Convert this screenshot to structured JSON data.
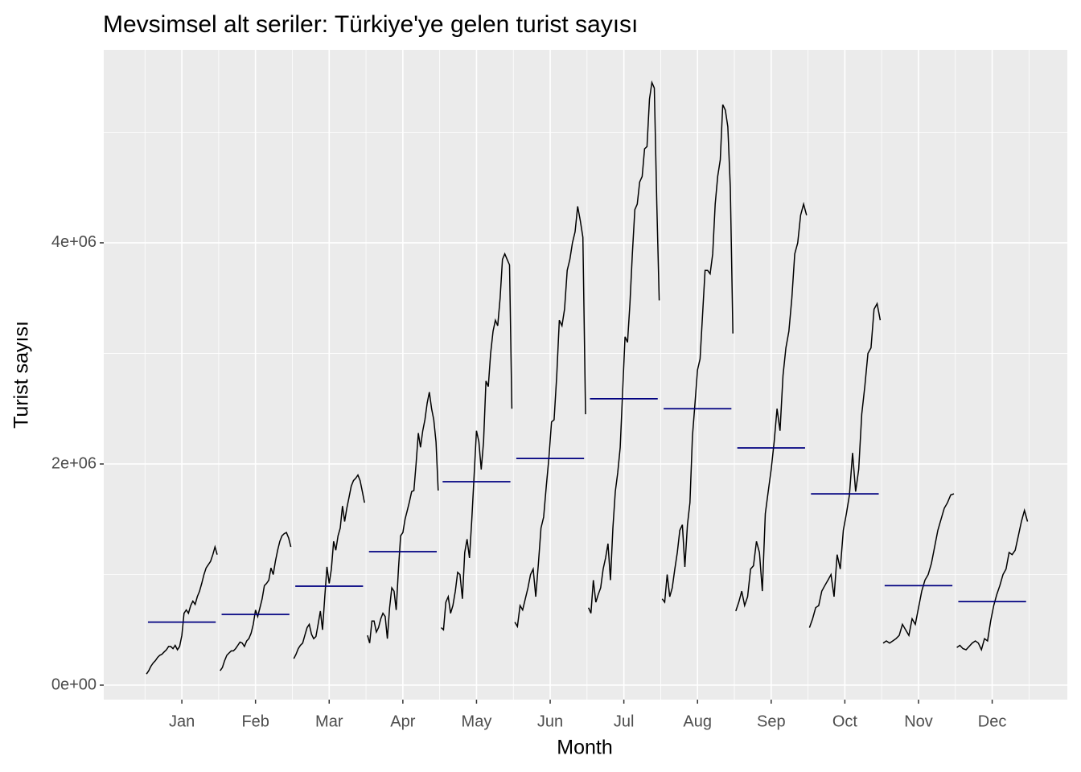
{
  "chart_data": {
    "type": "subseries",
    "title": "Mevsimsel alt seriler: Türkiye'ye gelen turist sayısı",
    "x_label": "Month",
    "y_label": "Turist sayısı",
    "line_color": "#000000",
    "mean_color": "#000080",
    "xlim": [
      -0.06,
      13.02
    ],
    "xticks": [
      {
        "value": 1,
        "label": "Jan"
      },
      {
        "value": 2,
        "label": "Feb"
      },
      {
        "value": 3,
        "label": "Mar"
      },
      {
        "value": 4,
        "label": "Apr"
      },
      {
        "value": 5,
        "label": "May"
      },
      {
        "value": 6,
        "label": "Jun"
      },
      {
        "value": 7,
        "label": "Jul"
      },
      {
        "value": 8,
        "label": "Aug"
      },
      {
        "value": 9,
        "label": "Sep"
      },
      {
        "value": 10,
        "label": "Oct"
      },
      {
        "value": 11,
        "label": "Nov"
      },
      {
        "value": 12,
        "label": "Dec"
      }
    ],
    "minor_xticks": [
      0.5,
      1.5,
      2.5,
      3.5,
      4.5,
      5.5,
      6.5,
      7.5,
      8.5,
      9.5,
      10.5,
      11.5,
      12.5
    ],
    "ylim": [
      -131000,
      5745000
    ],
    "yticks": [
      {
        "value": 0,
        "label": "0e+00"
      },
      {
        "value": 2000000,
        "label": "2e+06"
      },
      {
        "value": 4000000,
        "label": "4e+06"
      }
    ],
    "minor_yticks": [
      1000000,
      3000000,
      5000000
    ],
    "grid": true,
    "series": [
      {
        "name": "Jan",
        "mean": 570000,
        "values": [
          100000,
          130000,
          170000,
          200000,
          220000,
          250000,
          270000,
          280000,
          300000,
          320000,
          350000,
          350000,
          330000,
          360000,
          320000,
          350000,
          450000,
          650000,
          680000,
          650000,
          720000,
          760000,
          730000,
          800000,
          850000,
          920000,
          1000000,
          1060000,
          1090000,
          1120000,
          1180000,
          1250000,
          1180000
        ]
      },
      {
        "name": "Feb",
        "mean": 640000,
        "values": [
          130000,
          160000,
          220000,
          270000,
          290000,
          310000,
          310000,
          330000,
          360000,
          390000,
          380000,
          350000,
          400000,
          420000,
          470000,
          550000,
          680000,
          620000,
          700000,
          780000,
          900000,
          920000,
          950000,
          1060000,
          1000000,
          1120000,
          1220000,
          1300000,
          1350000,
          1370000,
          1380000,
          1330000,
          1250000
        ]
      },
      {
        "name": "Mar",
        "mean": 895000,
        "values": [
          240000,
          280000,
          330000,
          360000,
          380000,
          450000,
          520000,
          550000,
          460000,
          420000,
          440000,
          550000,
          670000,
          500000,
          800000,
          1070000,
          920000,
          1050000,
          1300000,
          1220000,
          1350000,
          1420000,
          1620000,
          1480000,
          1600000,
          1700000,
          1800000,
          1850000,
          1870000,
          1900000,
          1850000,
          1750000,
          1650000
        ]
      },
      {
        "name": "Apr",
        "mean": 1207000,
        "values": [
          450000,
          380000,
          580000,
          580000,
          480000,
          520000,
          600000,
          650000,
          620000,
          420000,
          700000,
          880000,
          850000,
          680000,
          1050000,
          1350000,
          1380000,
          1500000,
          1580000,
          1660000,
          1750000,
          1760000,
          2000000,
          2280000,
          2150000,
          2300000,
          2400000,
          2550000,
          2650000,
          2500000,
          2400000,
          2200000,
          1760000
        ]
      },
      {
        "name": "May",
        "mean": 1840000,
        "values": [
          520000,
          500000,
          750000,
          800000,
          650000,
          720000,
          850000,
          1020000,
          1000000,
          780000,
          1200000,
          1320000,
          1150000,
          1500000,
          1900000,
          2300000,
          2200000,
          1950000,
          2200000,
          2750000,
          2700000,
          3000000,
          3200000,
          3300000,
          3250000,
          3500000,
          3850000,
          3900000,
          3850000,
          3800000,
          2500000
        ]
      },
      {
        "name": "Jun",
        "mean": 2050000,
        "values": [
          570000,
          530000,
          720000,
          680000,
          780000,
          880000,
          1000000,
          1050000,
          800000,
          1100000,
          1420000,
          1520000,
          1800000,
          2050000,
          2380000,
          2400000,
          2800000,
          3300000,
          3250000,
          3400000,
          3750000,
          3850000,
          4000000,
          4100000,
          4330000,
          4200000,
          4050000,
          2450000
        ]
      },
      {
        "name": "Jul",
        "mean": 2590000,
        "values": [
          700000,
          650000,
          950000,
          750000,
          820000,
          880000,
          1050000,
          1150000,
          1280000,
          950000,
          1420000,
          1750000,
          1920000,
          2150000,
          2650000,
          3150000,
          3100000,
          3450000,
          3900000,
          4300000,
          4350000,
          4550000,
          4600000,
          4850000,
          4870000,
          5300000,
          5450000,
          5400000,
          4350000,
          3480000
        ]
      },
      {
        "name": "Aug",
        "mean": 2500000,
        "values": [
          780000,
          750000,
          1000000,
          800000,
          880000,
          1050000,
          1200000,
          1400000,
          1450000,
          1070000,
          1450000,
          1650000,
          2250000,
          2550000,
          2850000,
          2950000,
          3350000,
          3750000,
          3750000,
          3720000,
          3900000,
          4350000,
          4600000,
          4750000,
          5250000,
          5200000,
          5050000,
          4500000,
          3180000
        ]
      },
      {
        "name": "Sep",
        "mean": 2145000,
        "values": [
          670000,
          750000,
          850000,
          720000,
          800000,
          1050000,
          1080000,
          1300000,
          1200000,
          850000,
          1550000,
          1750000,
          1950000,
          2200000,
          2500000,
          2300000,
          2800000,
          3050000,
          3200000,
          3500000,
          3900000,
          4000000,
          4250000,
          4350000,
          4250000
        ]
      },
      {
        "name": "Oct",
        "mean": 1730000,
        "values": [
          520000,
          600000,
          700000,
          720000,
          850000,
          900000,
          950000,
          1000000,
          800000,
          1180000,
          1050000,
          1400000,
          1550000,
          1720000,
          2100000,
          1750000,
          1950000,
          2450000,
          2700000,
          3000000,
          3050000,
          3400000,
          3450000,
          3300000
        ]
      },
      {
        "name": "Nov",
        "mean": 900000,
        "values": [
          380000,
          400000,
          380000,
          400000,
          420000,
          450000,
          550000,
          500000,
          450000,
          600000,
          550000,
          700000,
          850000,
          950000,
          1000000,
          1100000,
          1250000,
          1400000,
          1500000,
          1600000,
          1650000,
          1720000,
          1730000
        ]
      },
      {
        "name": "Dec",
        "mean": 756000,
        "values": [
          340000,
          360000,
          330000,
          320000,
          350000,
          380000,
          400000,
          380000,
          320000,
          420000,
          400000,
          580000,
          720000,
          820000,
          900000,
          1000000,
          1050000,
          1200000,
          1180000,
          1220000,
          1350000,
          1480000,
          1580000,
          1480000
        ]
      }
    ]
  }
}
